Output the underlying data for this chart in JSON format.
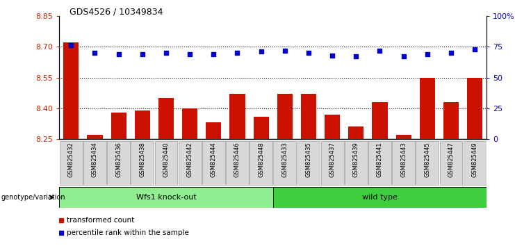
{
  "title": "GDS4526 / 10349834",
  "samples": [
    "GSM825432",
    "GSM825434",
    "GSM825436",
    "GSM825438",
    "GSM825440",
    "GSM825442",
    "GSM825444",
    "GSM825446",
    "GSM825448",
    "GSM825433",
    "GSM825435",
    "GSM825437",
    "GSM825439",
    "GSM825441",
    "GSM825443",
    "GSM825445",
    "GSM825447",
    "GSM825449"
  ],
  "bar_values": [
    8.72,
    8.27,
    8.38,
    8.39,
    8.45,
    8.4,
    8.33,
    8.47,
    8.36,
    8.47,
    8.47,
    8.37,
    8.31,
    8.43,
    8.27,
    8.55,
    8.43,
    8.55
  ],
  "percentile_values": [
    76,
    70,
    69,
    69,
    70,
    69,
    69,
    70,
    71,
    72,
    70,
    68,
    67,
    72,
    67,
    69,
    70,
    73
  ],
  "groups": [
    {
      "label": "Wfs1 knock-out",
      "start": 0,
      "end": 9,
      "color": "#90ee90"
    },
    {
      "label": "wild type",
      "start": 9,
      "end": 18,
      "color": "#3ecf3e"
    }
  ],
  "bar_color": "#cc1100",
  "dot_color": "#0000cc",
  "ylim_left": [
    8.25,
    8.85
  ],
  "ylim_right": [
    0,
    100
  ],
  "yticks_left": [
    8.25,
    8.4,
    8.55,
    8.7,
    8.85
  ],
  "yticks_right": [
    0,
    25,
    50,
    75,
    100
  ],
  "ytick_labels_right": [
    "0",
    "25",
    "50",
    "75",
    "100%"
  ],
  "hlines": [
    8.4,
    8.55,
    8.7
  ],
  "legend_items": [
    {
      "label": "transformed count",
      "color": "#cc1100"
    },
    {
      "label": "percentile rank within the sample",
      "color": "#0000cc"
    }
  ]
}
